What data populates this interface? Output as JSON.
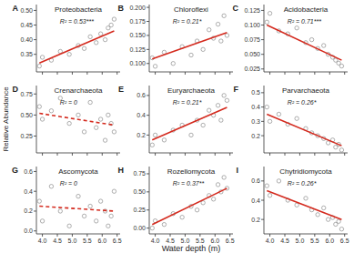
{
  "chart_data": [
    {
      "type": "scatter",
      "title": "Proteobacteria",
      "annotations": [
        "A",
        "R² = 0.53***"
      ],
      "xlim": [
        3.8,
        6.6
      ],
      "xticks": [
        {
          "value": 4,
          "label": "4.0"
        },
        4.5,
        {
          "value": 5,
          "label": "5.0"
        },
        5.5,
        {
          "value": 6,
          "label": "6.0"
        },
        6.5
      ],
      "ylim": [
        0.29,
        0.52
      ],
      "yticks": [
        0.35,
        {
          "value": 0.4,
          "label": "0.40"
        },
        0.45,
        {
          "value": 0.5,
          "label": "0.50"
        }
      ],
      "tick_labels": "y",
      "series": [
        {
          "type": "scatter",
          "color": "#8c8c8c",
          "marker": "circle",
          "x": [
            3.9,
            4.0,
            4.3,
            4.6,
            4.9,
            5.2,
            5.4,
            5.6,
            5.8,
            5.95,
            6.1,
            6.2,
            6.3,
            6.4
          ],
          "values": [
            0.31,
            0.34,
            0.33,
            0.36,
            0.35,
            0.38,
            0.37,
            0.41,
            0.39,
            0.42,
            0.4,
            0.44,
            0.45,
            0.47
          ]
        },
        {
          "type": "line",
          "color": "#d42a1e",
          "line_style": "solid",
          "x": [
            3.9,
            6.4
          ],
          "values": [
            0.32,
            0.43
          ]
        }
      ]
    },
    {
      "type": "scatter",
      "title": "Chloroflexi",
      "annotations": [
        "B",
        "R² = 0.21*"
      ],
      "xlim": [
        3.8,
        6.6
      ],
      "xticks": [
        {
          "value": 4,
          "label": "4.0"
        },
        4.5,
        {
          "value": 5,
          "label": "5.0"
        },
        5.5,
        {
          "value": 6,
          "label": "6.0"
        },
        6.5
      ],
      "ylim": [
        0.085,
        0.205
      ],
      "yticks": [
        {
          "value": 0.1,
          "label": "0.100"
        },
        0.125,
        {
          "value": 0.15,
          "label": "0.150"
        },
        0.175,
        {
          "value": 0.2,
          "label": "0.200"
        }
      ],
      "tick_labels": "y",
      "series": [
        {
          "type": "scatter",
          "color": "#8c8c8c",
          "marker": "circle",
          "x": [
            3.9,
            4.0,
            4.3,
            4.6,
            4.9,
            5.2,
            5.4,
            5.6,
            5.8,
            5.95,
            6.1,
            6.2,
            6.3,
            6.4
          ],
          "values": [
            0.11,
            0.095,
            0.12,
            0.1,
            0.13,
            0.115,
            0.14,
            0.125,
            0.16,
            0.145,
            0.17,
            0.14,
            0.185,
            0.15
          ]
        },
        {
          "type": "line",
          "color": "#d42a1e",
          "line_style": "solid",
          "x": [
            3.9,
            6.4
          ],
          "values": [
            0.108,
            0.155
          ]
        }
      ]
    },
    {
      "type": "scatter",
      "title": "Acidobacteria",
      "annotations": [
        "C",
        "R² = 0.71***"
      ],
      "xlim": [
        3.8,
        6.6
      ],
      "xticks": [
        {
          "value": 4,
          "label": "4.0"
        },
        4.5,
        {
          "value": 5,
          "label": "5.0"
        },
        5.5,
        {
          "value": 6,
          "label": "6.0"
        },
        6.5
      ],
      "ylim": [
        0.02,
        0.135
      ],
      "yticks": [
        0.025,
        {
          "value": 0.05,
          "label": "0.050"
        },
        0.075,
        {
          "value": 0.1,
          "label": "0.100"
        },
        0.125
      ],
      "tick_labels": "y",
      "series": [
        {
          "type": "scatter",
          "color": "#8c8c8c",
          "marker": "circle",
          "x": [
            3.9,
            4.0,
            4.3,
            4.6,
            4.9,
            5.2,
            5.4,
            5.6,
            5.8,
            5.95,
            6.1,
            6.2,
            6.3,
            6.4
          ],
          "values": [
            0.105,
            0.12,
            0.09,
            0.085,
            0.095,
            0.07,
            0.075,
            0.06,
            0.065,
            0.05,
            0.045,
            0.04,
            0.035,
            0.03
          ]
        },
        {
          "type": "line",
          "color": "#d42a1e",
          "line_style": "solid",
          "x": [
            3.9,
            6.4
          ],
          "values": [
            0.1,
            0.04
          ]
        }
      ]
    },
    {
      "type": "scatter",
      "title": "Crenarchaeota",
      "annotations": [
        "D",
        "R² = 0"
      ],
      "ylabel": "Relative Abundance",
      "xlim": [
        3.8,
        6.6
      ],
      "xticks": [
        {
          "value": 4,
          "label": "4.0"
        },
        4.5,
        {
          "value": 5,
          "label": "5.0"
        },
        5.5,
        {
          "value": 6,
          "label": "6.0"
        },
        6.5
      ],
      "ylim": [
        0.05,
        0.85
      ],
      "yticks": [
        0.25,
        {
          "value": 0.5,
          "label": "0.50"
        },
        0.75
      ],
      "tick_labels": "y",
      "series": [
        {
          "type": "scatter",
          "color": "#8c8c8c",
          "marker": "circle",
          "x": [
            3.9,
            4.0,
            4.3,
            4.6,
            4.9,
            5.2,
            5.4,
            5.6,
            5.8,
            5.95,
            6.1,
            6.2,
            6.3,
            6.4
          ],
          "values": [
            0.6,
            0.45,
            0.55,
            0.7,
            0.4,
            0.5,
            0.3,
            0.65,
            0.35,
            0.45,
            0.2,
            0.5,
            0.4,
            0.3
          ]
        },
        {
          "type": "line",
          "color": "#d42a1e",
          "line_style": "dashed",
          "x": [
            3.9,
            6.4
          ],
          "values": [
            0.52,
            0.38
          ]
        }
      ]
    },
    {
      "type": "scatter",
      "title": "Euryarchaeota",
      "annotations": [
        "E",
        "R² = 0.21*"
      ],
      "xlim": [
        3.8,
        6.6
      ],
      "xticks": [
        {
          "value": 4,
          "label": "4.0"
        },
        4.5,
        {
          "value": 5,
          "label": "5.0"
        },
        5.5,
        {
          "value": 6,
          "label": "6.0"
        },
        6.5
      ],
      "ylim": [
        0.02,
        0.7
      ],
      "yticks": [
        0.2,
        0.4,
        0.6
      ],
      "tick_labels": "y",
      "series": [
        {
          "type": "scatter",
          "color": "#8c8c8c",
          "marker": "circle",
          "x": [
            3.9,
            4.0,
            4.3,
            4.6,
            4.9,
            5.2,
            5.4,
            5.6,
            5.8,
            5.95,
            6.1,
            6.2,
            6.3,
            6.4
          ],
          "values": [
            0.1,
            0.2,
            0.15,
            0.25,
            0.3,
            0.2,
            0.35,
            0.3,
            0.45,
            0.4,
            0.5,
            0.35,
            0.6,
            0.55
          ]
        },
        {
          "type": "line",
          "color": "#d42a1e",
          "line_style": "solid",
          "x": [
            3.9,
            6.4
          ],
          "values": [
            0.15,
            0.48
          ]
        }
      ]
    },
    {
      "type": "scatter",
      "title": "Parvarchaeota",
      "annotations": [
        "F",
        "R² = 0.26*"
      ],
      "xlim": [
        3.8,
        6.6
      ],
      "xticks": [
        {
          "value": 4,
          "label": "4.0"
        },
        4.5,
        {
          "value": 5,
          "label": "5.0"
        },
        5.5,
        {
          "value": 6,
          "label": "6.0"
        },
        6.5
      ],
      "ylim": [
        0.08,
        0.55
      ],
      "yticks": [
        0.2,
        0.3,
        0.4,
        0.5
      ],
      "tick_labels": "y",
      "series": [
        {
          "type": "scatter",
          "color": "#8c8c8c",
          "marker": "circle",
          "x": [
            3.9,
            4.0,
            4.3,
            4.6,
            4.9,
            5.2,
            5.4,
            5.6,
            5.8,
            5.95,
            6.1,
            6.2,
            6.3,
            6.4
          ],
          "values": [
            0.4,
            0.3,
            0.35,
            0.28,
            0.32,
            0.25,
            0.22,
            0.2,
            0.18,
            0.15,
            0.17,
            0.12,
            0.14,
            0.1
          ]
        },
        {
          "type": "line",
          "color": "#d42a1e",
          "line_style": "solid",
          "x": [
            3.9,
            6.4
          ],
          "values": [
            0.35,
            0.13
          ]
        }
      ]
    },
    {
      "type": "scatter",
      "title": "Ascomycota",
      "annotations": [
        "G",
        "R² = 0"
      ],
      "xlim": [
        3.8,
        6.6
      ],
      "xticks": [
        {
          "value": 4,
          "label": "4.0"
        },
        4.5,
        {
          "value": 5,
          "label": "5.0"
        },
        5.5,
        {
          "value": 6,
          "label": "6.0"
        },
        6.5
      ],
      "ylim": [
        -0.03,
        0.65
      ],
      "yticks": [
        {
          "value": 0,
          "label": "0.0"
        },
        0.2,
        0.4,
        0.6
      ],
      "series": [
        {
          "type": "scatter",
          "color": "#8c8c8c",
          "marker": "circle",
          "x": [
            3.9,
            4.0,
            4.3,
            4.6,
            4.9,
            5.2,
            5.4,
            5.6,
            5.8,
            5.95,
            6.1,
            6.2,
            6.3,
            6.4
          ],
          "values": [
            0.3,
            0.1,
            0.45,
            0.2,
            0.05,
            0.35,
            0.15,
            0.25,
            0.1,
            0.3,
            0.2,
            0.05,
            0.15,
            0.4
          ]
        },
        {
          "type": "line",
          "color": "#d42a1e",
          "line_style": "dashed",
          "x": [
            3.9,
            6.4
          ],
          "values": [
            0.25,
            0.2
          ]
        }
      ]
    },
    {
      "type": "scatter",
      "title": "Rozellomycota",
      "annotations": [
        "H",
        "R² = 0.37**"
      ],
      "xlabel": "Water depth (m)",
      "xlim": [
        3.8,
        6.6
      ],
      "xticks": [
        {
          "value": 4,
          "label": "4.0"
        },
        4.5,
        {
          "value": 5,
          "label": "5.0"
        },
        5.5,
        {
          "value": 6,
          "label": "6.0"
        },
        6.5
      ],
      "ylim": [
        -0.08,
        0.85
      ],
      "yticks": [
        {
          "value": 0,
          "label": "0.00"
        },
        0.25,
        {
          "value": 0.5,
          "label": "0.50"
        },
        0.75
      ],
      "series": [
        {
          "type": "scatter",
          "color": "#8c8c8c",
          "marker": "circle",
          "x": [
            3.9,
            4.0,
            4.3,
            4.6,
            4.9,
            5.2,
            5.4,
            5.6,
            5.8,
            5.95,
            6.1,
            6.2,
            6.3,
            6.4
          ],
          "values": [
            0.0,
            0.1,
            0.05,
            0.2,
            0.15,
            0.3,
            0.25,
            0.35,
            0.45,
            0.4,
            0.6,
            0.5,
            0.7,
            0.55
          ]
        },
        {
          "type": "line",
          "color": "#d42a1e",
          "line_style": "solid",
          "x": [
            3.9,
            6.4
          ],
          "values": [
            0.05,
            0.55
          ]
        }
      ]
    },
    {
      "type": "scatter",
      "title": "Chytridiomycota",
      "annotations": [
        "I",
        "R² = 0.26*"
      ],
      "xlim": [
        3.8,
        6.6
      ],
      "xticks": [
        {
          "value": 4,
          "label": "4.0"
        },
        4.5,
        {
          "value": 5,
          "label": "5.0"
        },
        5.5,
        {
          "value": 6,
          "label": "6.0"
        },
        6.5
      ],
      "ylim": [
        0.05,
        0.75
      ],
      "yticks": [
        0.2,
        0.4,
        0.6
      ],
      "series": [
        {
          "type": "scatter",
          "color": "#8c8c8c",
          "marker": "circle",
          "x": [
            3.9,
            4.0,
            4.3,
            4.6,
            4.9,
            5.2,
            5.4,
            5.6,
            5.8,
            5.95,
            6.1,
            6.2,
            6.3,
            6.4
          ],
          "values": [
            0.55,
            0.45,
            0.6,
            0.4,
            0.35,
            0.42,
            0.3,
            0.25,
            0.32,
            0.2,
            0.22,
            0.15,
            0.18,
            0.1
          ]
        },
        {
          "type": "line",
          "color": "#d42a1e",
          "line_style": "solid",
          "x": [
            3.9,
            6.4
          ],
          "values": [
            0.5,
            0.2
          ]
        }
      ]
    }
  ]
}
